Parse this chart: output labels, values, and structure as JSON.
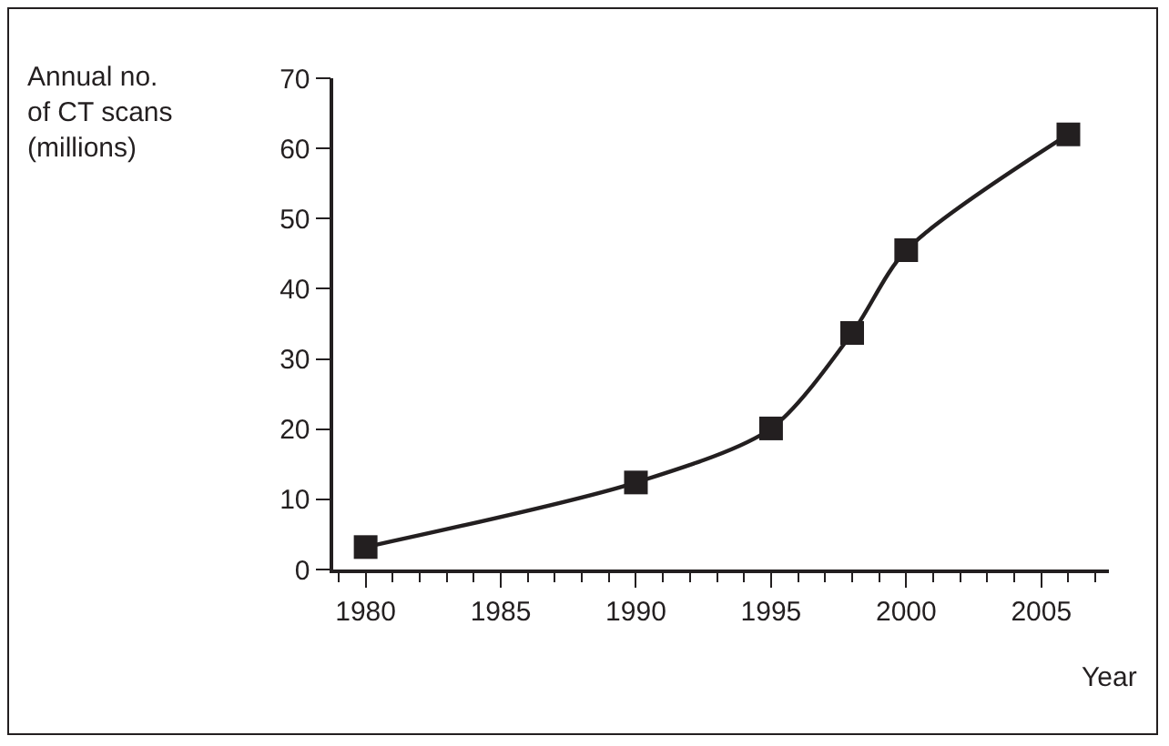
{
  "chart_data": {
    "type": "line",
    "xlabel": "Year",
    "ylabel": "Annual no.\nof CT scans\n(millions)",
    "x": [
      1980,
      1990,
      1995,
      1998,
      2000,
      2006
    ],
    "series": [
      {
        "color": "#231f20",
        "values": [
          3.2,
          12.4,
          20.1,
          33.7,
          45.5,
          62
        ]
      }
    ],
    "xlim": [
      1978.8,
      2007.5
    ],
    "xticks": [
      1980,
      1985,
      1990,
      1995,
      2000,
      2005
    ],
    "ylim": [
      0,
      70
    ],
    "yticks": [
      0,
      10,
      20,
      30,
      40,
      50,
      60,
      70
    ],
    "grid": false,
    "legend": false,
    "marker": "square",
    "line_style": "solid"
  }
}
